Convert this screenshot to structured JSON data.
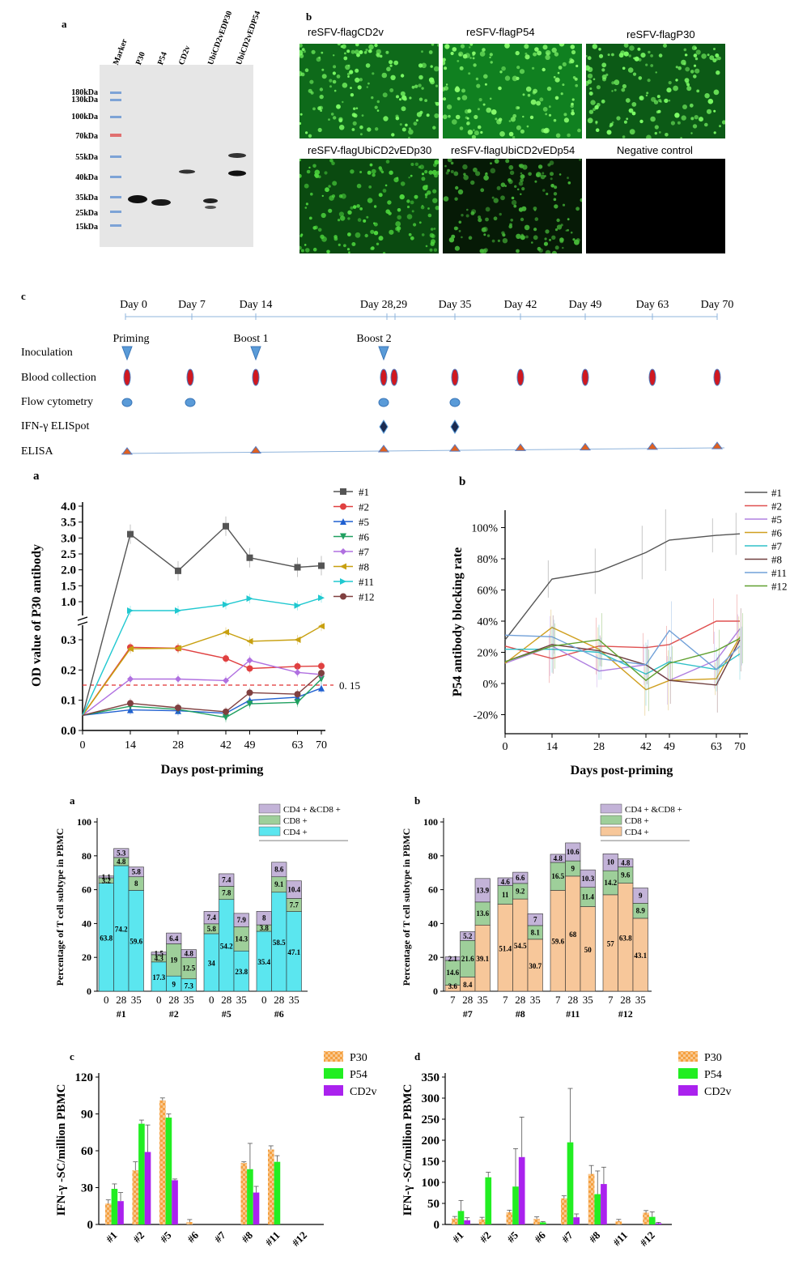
{
  "figure1": {
    "panel_a_letter": "a",
    "panel_b_letter": "b",
    "blot": {
      "lanes": [
        "Marker",
        "P30",
        "P54",
        "CD2v",
        "UbiCD2vEDP30",
        "UbiCD2vEDP54"
      ],
      "markers": [
        "180kDa",
        "130kDa",
        "100kDa",
        "70kDa",
        "55kDa",
        "40kDa",
        "35kDa",
        "25kDa",
        "15kDa"
      ]
    },
    "fluorescence": {
      "labels": [
        "reSFV-flagCD2v",
        "reSFV-flagP54",
        "reSFV-flagP30",
        "reSFV-flagUbiCD2vEDp30",
        "reSFV-flagUbiCD2vEDp54",
        "Negative control"
      ]
    }
  },
  "timeline": {
    "panel_letter": "c",
    "days": [
      "Day 0",
      "Day 7",
      "Day 14",
      "Day 28,29",
      "Day 35",
      "Day 42",
      "Day 49",
      "Day 63",
      "Day 70"
    ],
    "events": [
      "Priming",
      "Boost 1",
      "Boost 2"
    ],
    "rows": [
      "Inoculation",
      "Blood collection",
      "Flow cytometry",
      "IFN-γ ELISpot",
      "ELISA"
    ]
  },
  "figure2": {
    "panel_a_letter": "a",
    "panel_b_letter": "b"
  },
  "figure3": {
    "panel_a_letter": "a",
    "panel_b_letter": "b"
  },
  "figure4": {
    "panel_c_letter": "c",
    "panel_d_letter": "d"
  },
  "chart_data": [
    {
      "type": "line",
      "xlabel": "Days post-priming",
      "ylabel": "OD value of P30 antibody",
      "x": [
        0,
        14,
        28,
        42,
        49,
        63,
        70
      ],
      "lower_ticks": [
        "0.0",
        "0.1",
        "0.2",
        "0.3"
      ],
      "upper_ticks": [
        "1.0",
        "1.5",
        "2.0",
        "2.5",
        "3.0",
        "3.5",
        "4.0"
      ],
      "x_ticks": [
        "0",
        "14",
        "28",
        "42",
        "49",
        "63",
        "70"
      ],
      "threshold": 0.15,
      "threshold_label": "0. 15",
      "series": [
        {
          "name": "#1",
          "color": "#555555",
          "marker": "square",
          "values": [
            0.05,
            3.12,
            1.97,
            3.37,
            2.38,
            2.08,
            2.13
          ]
        },
        {
          "name": "#2",
          "color": "#e04040",
          "marker": "circle",
          "values": [
            0.05,
            0.275,
            0.272,
            0.238,
            0.205,
            0.212,
            0.213
          ]
        },
        {
          "name": "#5",
          "color": "#2060d0",
          "marker": "triangle",
          "values": [
            0.05,
            0.068,
            0.065,
            0.057,
            0.1,
            0.11,
            0.14
          ]
        },
        {
          "name": "#6",
          "color": "#20a060",
          "marker": "triangle-down",
          "values": [
            0.05,
            0.08,
            0.07,
            0.043,
            0.088,
            0.093,
            0.17
          ]
        },
        {
          "name": "#7",
          "color": "#b070e0",
          "marker": "diamond",
          "values": [
            0.05,
            0.17,
            0.17,
            0.165,
            0.232,
            0.192,
            0.185
          ]
        },
        {
          "name": "#8",
          "color": "#c8a010",
          "marker": "triangle-left",
          "values": [
            0.05,
            0.27,
            0.272,
            0.325,
            0.295,
            0.3,
            0.345
          ]
        },
        {
          "name": "#11",
          "color": "#20c8d0",
          "marker": "triangle-right",
          "values": [
            0.05,
            0.72,
            0.72,
            0.91,
            1.1,
            0.88,
            1.12
          ]
        },
        {
          "name": "#12",
          "color": "#804040",
          "marker": "circle",
          "values": [
            0.05,
            0.09,
            0.075,
            0.062,
            0.125,
            0.12,
            0.19
          ]
        }
      ]
    },
    {
      "type": "line",
      "xlabel": "Days post-priming",
      "ylabel": "P54 antibody blocking rate",
      "x": [
        0,
        14,
        28,
        42,
        49,
        63,
        70
      ],
      "x_ticks": [
        "0",
        "14",
        "28",
        "42",
        "49",
        "63",
        "70"
      ],
      "y_ticks": [
        "-20%",
        "0%",
        "20%",
        "40%",
        "60%",
        "80%",
        "100%"
      ],
      "ylim": [
        -0.32,
        1.12
      ],
      "series": [
        {
          "name": "#1",
          "color": "#555555",
          "values": [
            0.28,
            0.67,
            0.72,
            0.84,
            0.92,
            0.95,
            0.96
          ]
        },
        {
          "name": "#2",
          "color": "#e05050",
          "values": [
            0.24,
            0.16,
            0.24,
            0.23,
            0.25,
            0.4,
            0.4
          ]
        },
        {
          "name": "#5",
          "color": "#b080e0",
          "values": [
            0.13,
            0.24,
            0.08,
            0.12,
            0.02,
            0.15,
            0.35
          ]
        },
        {
          "name": "#6",
          "color": "#d0a020",
          "values": [
            0.13,
            0.36,
            0.22,
            -0.04,
            0.02,
            0.03,
            0.3
          ]
        },
        {
          "name": "#7",
          "color": "#30c0c8",
          "values": [
            0.22,
            0.22,
            0.2,
            0.06,
            0.14,
            0.09,
            0.19
          ]
        },
        {
          "name": "#8",
          "color": "#704040",
          "values": [
            0.14,
            0.25,
            0.21,
            0.12,
            0.02,
            -0.01,
            0.28
          ]
        },
        {
          "name": "#11",
          "color": "#70a0d8",
          "values": [
            0.31,
            0.3,
            0.16,
            0.12,
            0.34,
            0.09,
            0.24
          ]
        },
        {
          "name": "#12",
          "color": "#60a030",
          "values": [
            0.14,
            0.24,
            0.28,
            0.02,
            0.13,
            0.21,
            0.29
          ]
        }
      ]
    },
    {
      "type": "bar",
      "stacked": true,
      "ylabel": "Percentage of T cell subtype in PBMC",
      "y_ticks": [
        "0",
        "20",
        "40",
        "60",
        "80",
        "100"
      ],
      "ylim": [
        0,
        100
      ],
      "legend": [
        "CD4 + &CD8 +",
        "CD8 +",
        "CD4 +"
      ],
      "colors": {
        "cd4": "#5be6ef",
        "cd8": "#9ecf9a",
        "dp": "#c3b3d8"
      },
      "groups": [
        {
          "name": "#1",
          "days": [
            "0",
            "28",
            "35"
          ],
          "cd4": [
            63.8,
            74.2,
            59.6
          ],
          "cd8": [
            3.2,
            4.8,
            8
          ],
          "dp": [
            1.1,
            5.3,
            5.8
          ]
        },
        {
          "name": "#2",
          "days": [
            "0",
            "28",
            "35"
          ],
          "cd4": [
            17.3,
            9,
            7.3
          ],
          "cd8": [
            4.3,
            19,
            12.5
          ],
          "dp": [
            1.5,
            6.4,
            4.8
          ]
        },
        {
          "name": "#5",
          "days": [
            "0",
            "28",
            "35"
          ],
          "cd4": [
            34,
            54.2,
            23.8
          ],
          "cd8": [
            5.8,
            7.8,
            14.3
          ],
          "dp": [
            7.4,
            7.4,
            7.9
          ]
        },
        {
          "name": "#6",
          "days": [
            "0",
            "28",
            "35"
          ],
          "cd4": [
            35.4,
            58.5,
            47.1
          ],
          "cd8": [
            3.8,
            9.1,
            7.7
          ],
          "dp": [
            8,
            8.6,
            10.4
          ]
        }
      ]
    },
    {
      "type": "bar",
      "stacked": true,
      "ylabel": "Percentage of T cell subtype in PBMC",
      "y_ticks": [
        "0",
        "20",
        "40",
        "60",
        "80",
        "100"
      ],
      "ylim": [
        0,
        100
      ],
      "legend": [
        "CD4 + &CD8 +",
        "CD8 +",
        "CD4 +"
      ],
      "colors": {
        "cd4": "#f7c79a",
        "cd8": "#9ecf9a",
        "dp": "#c3b3d8"
      },
      "groups": [
        {
          "name": "#7",
          "days": [
            "7",
            "28",
            "35"
          ],
          "cd4": [
            3.6,
            8.4,
            39.1
          ],
          "cd8": [
            14.6,
            21.6,
            13.6
          ],
          "dp": [
            2.1,
            5.2,
            13.9
          ]
        },
        {
          "name": "#8",
          "days": [
            "7",
            "28",
            "35"
          ],
          "cd4": [
            51.4,
            54.5,
            30.7
          ],
          "cd8": [
            11,
            9.2,
            8.1
          ],
          "dp": [
            4.6,
            6.6,
            7
          ]
        },
        {
          "name": "#11",
          "days": [
            "7",
            "28",
            "35"
          ],
          "cd4": [
            59.6,
            68,
            50
          ],
          "cd8": [
            16.5,
            9,
            11.4
          ],
          "dp": [
            4.8,
            10.6,
            10.3
          ]
        },
        {
          "name": "#12",
          "days": [
            "7",
            "28",
            "35"
          ],
          "cd4": [
            57,
            63.8,
            43.1
          ],
          "cd8": [
            14.2,
            9.6,
            8.9
          ],
          "dp": [
            10,
            4.8,
            9
          ]
        }
      ]
    },
    {
      "type": "bar",
      "ylabel": "IFN-γ -SC/million PBMC",
      "y_ticks": [
        "0",
        "30",
        "60",
        "90",
        "120"
      ],
      "ylim": [
        0,
        120
      ],
      "categories": [
        "#1",
        "#2",
        "#5",
        "#6",
        "#7",
        "#8",
        "#11",
        "#12"
      ],
      "series": [
        {
          "name": "P30",
          "color": "#f5a040",
          "values": [
            17,
            44,
            101,
            2,
            0,
            50,
            61,
            0
          ],
          "errors": [
            3,
            7,
            2,
            2,
            0,
            1,
            3,
            0
          ]
        },
        {
          "name": "P54",
          "color": "#22ee22",
          "values": [
            29,
            82,
            87,
            0,
            0,
            45,
            51,
            0
          ],
          "errors": [
            4,
            3,
            3,
            0,
            0,
            21,
            5,
            0
          ]
        },
        {
          "name": "CD2v",
          "color": "#aa22ee",
          "values": [
            19,
            59,
            36,
            0,
            0,
            26,
            0,
            0
          ],
          "errors": [
            7,
            22,
            1,
            0,
            0,
            5,
            0,
            0
          ]
        }
      ]
    },
    {
      "type": "bar",
      "ylabel": "IFN-γ -SC/million PBMC",
      "y_ticks": [
        "0",
        "50",
        "100",
        "150",
        "200",
        "250",
        "300",
        "350"
      ],
      "ylim": [
        0,
        350
      ],
      "categories": [
        "#1",
        "#2",
        "#5",
        "#6",
        "#7",
        "#8",
        "#11",
        "#12"
      ],
      "series": [
        {
          "name": "P30",
          "color": "#f5a040",
          "values": [
            14,
            12,
            29,
            13,
            62,
            120,
            8,
            28
          ],
          "errors": [
            5,
            5,
            5,
            5,
            6,
            20,
            4,
            5
          ]
        },
        {
          "name": "P54",
          "color": "#22ee22",
          "values": [
            32,
            112,
            90,
            5,
            195,
            72,
            0,
            18
          ],
          "errors": [
            25,
            12,
            90,
            2,
            128,
            55,
            0,
            12
          ]
        },
        {
          "name": "CD2v",
          "color": "#aa22ee",
          "values": [
            10,
            0,
            160,
            0,
            17,
            96,
            0,
            3
          ],
          "errors": [
            6,
            0,
            95,
            0,
            8,
            40,
            0,
            2
          ]
        }
      ]
    }
  ]
}
